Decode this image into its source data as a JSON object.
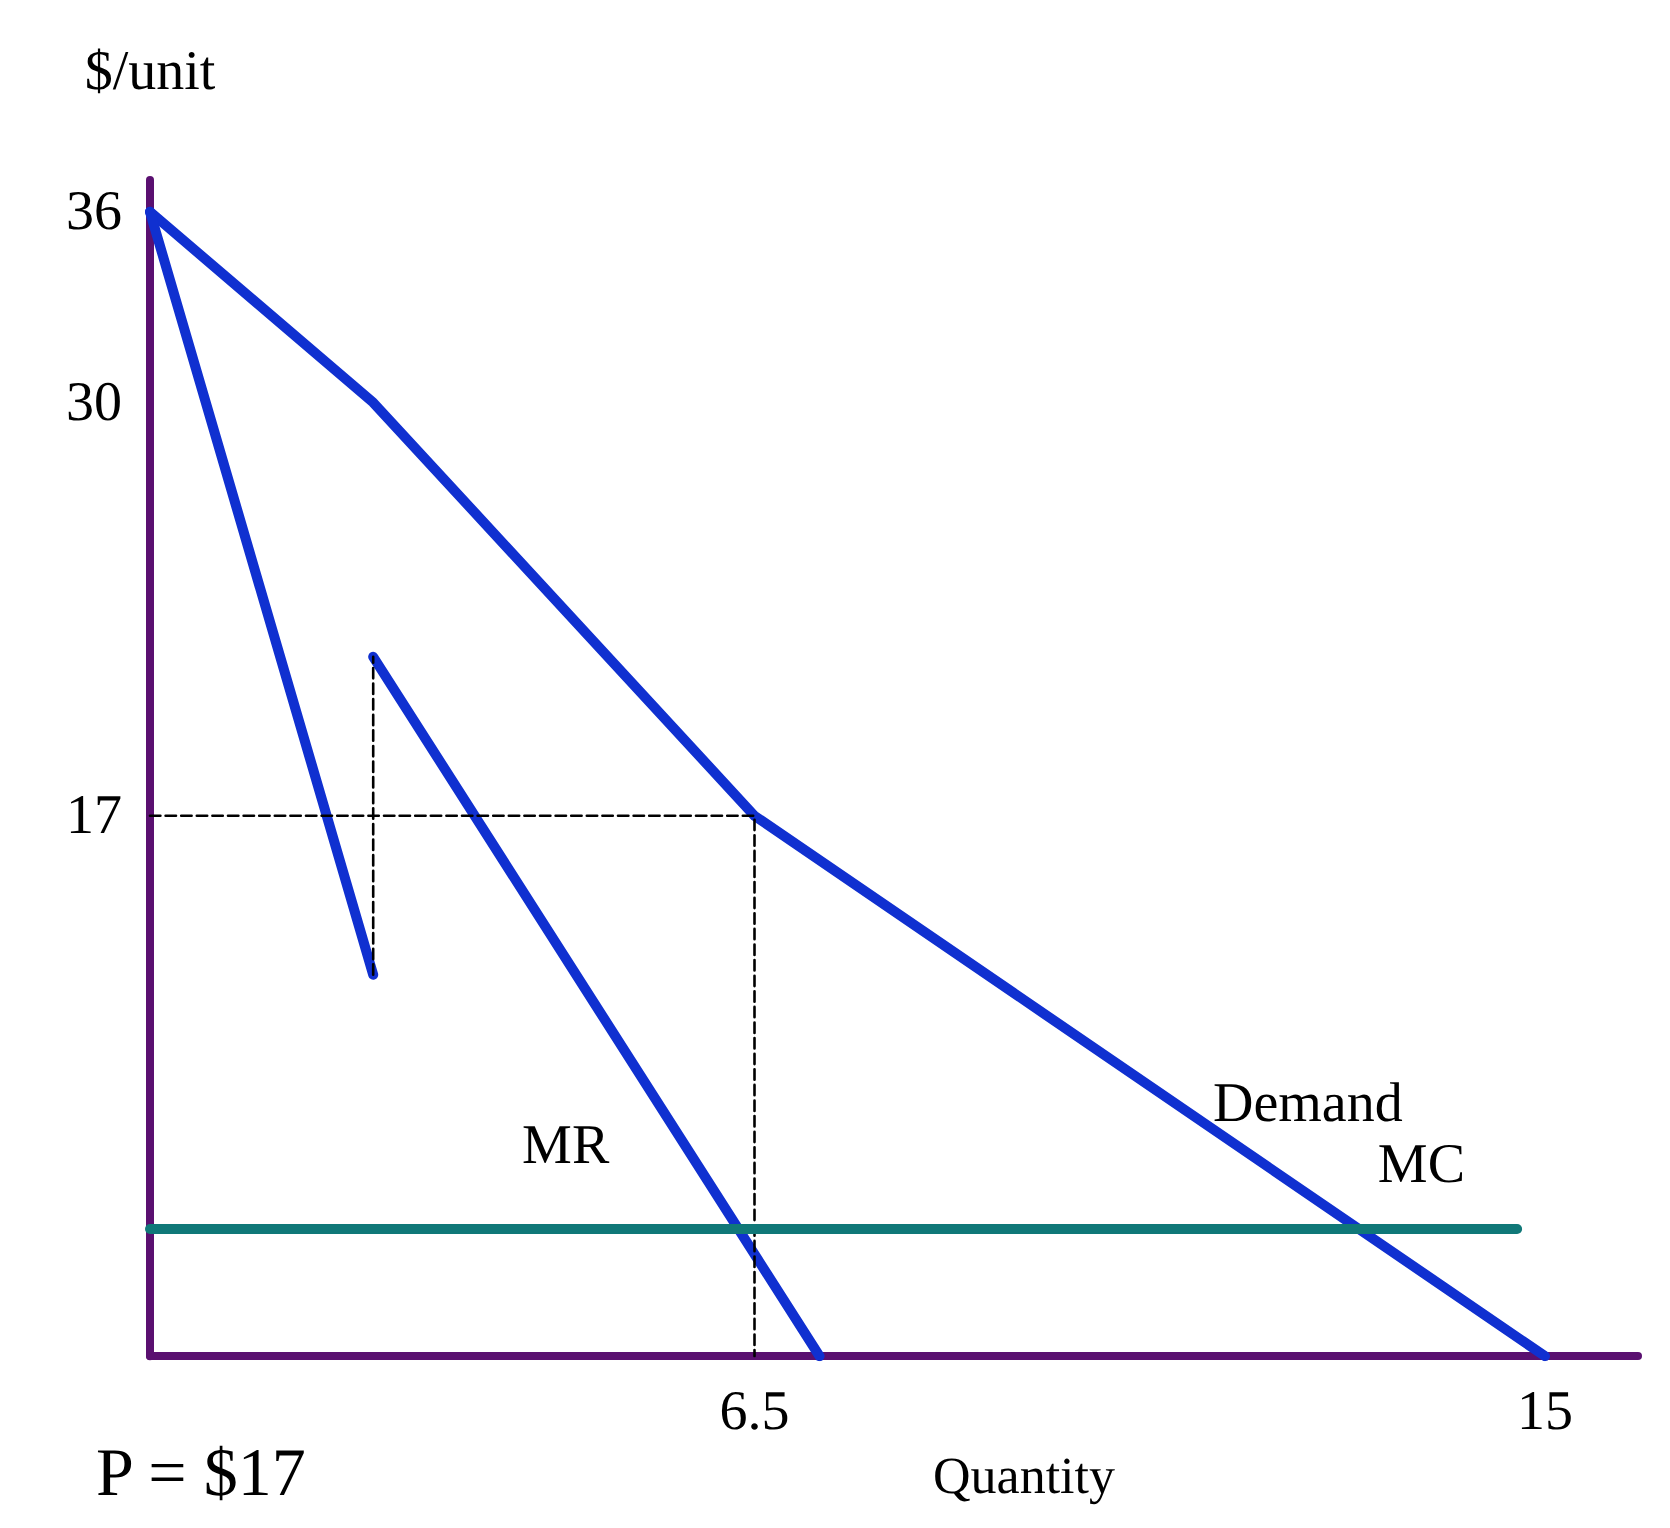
{
  "chart_data": {
    "type": "line",
    "xlabel": "Quantity",
    "ylabel": "$/unit",
    "xlim": [
      0,
      16
    ],
    "ylim": [
      0,
      37
    ],
    "xticks": [
      6.5,
      15
    ],
    "yticks": [
      17,
      30,
      36
    ],
    "grid": false,
    "marker": "none",
    "series": [
      {
        "name": "Demand",
        "color": "#1030d0",
        "x": [
          0,
          2.4,
          6.5,
          15
        ],
        "values": [
          36,
          30,
          17,
          0
        ]
      },
      {
        "color": "#1030d0",
        "x": [
          0,
          2.4
        ],
        "values": [
          36,
          12
        ]
      },
      {
        "name": "MR",
        "color": "#1030d0",
        "x": [
          2.4,
          7.2
        ],
        "values": [
          22,
          0
        ]
      },
      {
        "color": "#000000",
        "x": [
          2.4,
          2.4
        ],
        "values": [
          12,
          22
        ],
        "line_style": "dashed"
      },
      {
        "color": "#000000",
        "x": [
          0,
          6.5,
          6.5
        ],
        "values": [
          17,
          17,
          0
        ],
        "line_style": "dashed"
      },
      {
        "name": "MC",
        "color": "#107878",
        "x": [
          0,
          14.7
        ],
        "values": [
          4,
          4
        ]
      }
    ],
    "annotations": [
      "P = $17"
    ]
  }
}
